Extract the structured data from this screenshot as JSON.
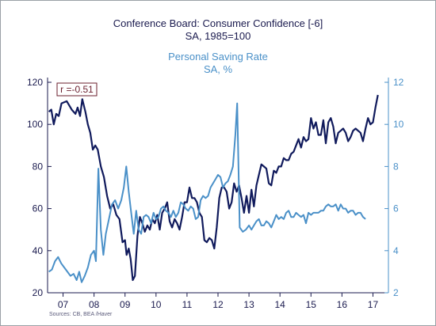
{
  "chart_data": {
    "type": "line",
    "title": "Conference Board: Consumer Confidence [-6]",
    "subtitle": "SA, 1985=100",
    "title2": "Personal Saving Rate",
    "subtitle2": "SA, %",
    "annotation": "r =-0.51",
    "source": "Sources:  CB, BEA /Haver",
    "grid": false,
    "x_ticks": [
      "07",
      "08",
      "09",
      "10",
      "11",
      "12",
      "13",
      "14",
      "15",
      "16",
      "17"
    ],
    "y_left_ticks": [
      "20",
      "40",
      "60",
      "80",
      "100",
      "120"
    ],
    "y_right_ticks": [
      "2",
      "4",
      "6",
      "8",
      "10",
      "12"
    ],
    "ylim_left": [
      20,
      120
    ],
    "ylim_right": [
      2,
      12
    ],
    "xlim": [
      2006.5,
      2017.5
    ],
    "colors": {
      "confidence": "#101a5c",
      "saving": "#4a90c8",
      "axis": "#1a1a4e"
    },
    "series": [
      {
        "axis": "left",
        "color": "#101a5c",
        "points": [
          [
            2006.54,
            106
          ],
          [
            2006.62,
            107
          ],
          [
            2006.7,
            100
          ],
          [
            2006.78,
            105
          ],
          [
            2006.86,
            104
          ],
          [
            2006.95,
            110
          ],
          [
            2007.12,
            111
          ],
          [
            2007.28,
            107
          ],
          [
            2007.4,
            105
          ],
          [
            2007.47,
            108
          ],
          [
            2007.55,
            104
          ],
          [
            2007.62,
            112
          ],
          [
            2007.72,
            106
          ],
          [
            2007.8,
            100
          ],
          [
            2007.88,
            96
          ],
          [
            2007.96,
            88
          ],
          [
            2008.04,
            90
          ],
          [
            2008.12,
            88
          ],
          [
            2008.22,
            80
          ],
          [
            2008.32,
            75
          ],
          [
            2008.42,
            66
          ],
          [
            2008.52,
            60
          ],
          [
            2008.62,
            62
          ],
          [
            2008.72,
            57
          ],
          [
            2008.82,
            55
          ],
          [
            2008.92,
            44
          ],
          [
            2009.0,
            45
          ],
          [
            2009.05,
            38
          ],
          [
            2009.12,
            41
          ],
          [
            2009.18,
            36
          ],
          [
            2009.25,
            26
          ],
          [
            2009.32,
            28
          ],
          [
            2009.4,
            47
          ],
          [
            2009.48,
            56
          ],
          [
            2009.56,
            53
          ],
          [
            2009.64,
            49
          ],
          [
            2009.72,
            52
          ],
          [
            2009.8,
            50
          ],
          [
            2009.88,
            55
          ],
          [
            2009.96,
            53
          ],
          [
            2010.04,
            57
          ],
          [
            2010.12,
            50
          ],
          [
            2010.2,
            58
          ],
          [
            2010.28,
            60
          ],
          [
            2010.36,
            63
          ],
          [
            2010.44,
            54
          ],
          [
            2010.52,
            51
          ],
          [
            2010.6,
            55
          ],
          [
            2010.68,
            53
          ],
          [
            2010.76,
            50
          ],
          [
            2010.84,
            56
          ],
          [
            2010.92,
            63
          ],
          [
            2011.0,
            63
          ],
          [
            2011.08,
            70
          ],
          [
            2011.16,
            65
          ],
          [
            2011.24,
            65
          ],
          [
            2011.32,
            63
          ],
          [
            2011.4,
            58
          ],
          [
            2011.48,
            56
          ],
          [
            2011.56,
            45
          ],
          [
            2011.64,
            44
          ],
          [
            2011.72,
            46
          ],
          [
            2011.8,
            45
          ],
          [
            2011.88,
            41
          ],
          [
            2011.96,
            51
          ],
          [
            2012.04,
            65
          ],
          [
            2012.12,
            70
          ],
          [
            2012.2,
            70
          ],
          [
            2012.28,
            68
          ],
          [
            2012.36,
            60
          ],
          [
            2012.44,
            63
          ],
          [
            2012.52,
            72
          ],
          [
            2012.6,
            68
          ],
          [
            2012.68,
            71
          ],
          [
            2012.76,
            65
          ],
          [
            2012.84,
            58
          ],
          [
            2012.92,
            66
          ],
          [
            2013.0,
            58
          ],
          [
            2013.08,
            69
          ],
          [
            2013.16,
            61
          ],
          [
            2013.24,
            71
          ],
          [
            2013.32,
            76
          ],
          [
            2013.4,
            81
          ],
          [
            2013.48,
            80
          ],
          [
            2013.56,
            79
          ],
          [
            2013.64,
            72
          ],
          [
            2013.72,
            71
          ],
          [
            2013.8,
            78
          ],
          [
            2013.88,
            77
          ],
          [
            2013.96,
            80
          ],
          [
            2014.04,
            80
          ],
          [
            2014.12,
            84
          ],
          [
            2014.2,
            83
          ],
          [
            2014.28,
            83
          ],
          [
            2014.36,
            86
          ],
          [
            2014.44,
            87
          ],
          [
            2014.52,
            90
          ],
          [
            2014.6,
            93
          ],
          [
            2014.68,
            89
          ],
          [
            2014.76,
            94
          ],
          [
            2014.84,
            92
          ],
          [
            2014.92,
            93
          ],
          [
            2015.0,
            103
          ],
          [
            2015.08,
            98
          ],
          [
            2015.16,
            101
          ],
          [
            2015.24,
            95
          ],
          [
            2015.32,
            95
          ],
          [
            2015.4,
            102
          ],
          [
            2015.48,
            91
          ],
          [
            2015.56,
            101
          ],
          [
            2015.64,
            103
          ],
          [
            2015.72,
            99
          ],
          [
            2015.8,
            91
          ],
          [
            2015.88,
            96
          ],
          [
            2015.96,
            97
          ],
          [
            2016.04,
            98
          ],
          [
            2016.12,
            96
          ],
          [
            2016.2,
            92
          ],
          [
            2016.28,
            94
          ],
          [
            2016.36,
            97
          ],
          [
            2016.44,
            98
          ],
          [
            2016.52,
            97
          ],
          [
            2016.6,
            96
          ],
          [
            2016.68,
            92
          ],
          [
            2016.76,
            98
          ],
          [
            2016.84,
            103
          ],
          [
            2016.92,
            100
          ],
          [
            2017.0,
            101
          ],
          [
            2017.08,
            108
          ],
          [
            2017.16,
            114
          ]
        ]
      },
      {
        "axis": "right",
        "color": "#4a90c8",
        "points": [
          [
            2006.54,
            3.0
          ],
          [
            2006.64,
            3.1
          ],
          [
            2006.74,
            3.5
          ],
          [
            2006.84,
            3.7
          ],
          [
            2006.94,
            3.4
          ],
          [
            2007.04,
            3.2
          ],
          [
            2007.14,
            3.0
          ],
          [
            2007.24,
            2.8
          ],
          [
            2007.34,
            2.9
          ],
          [
            2007.44,
            2.6
          ],
          [
            2007.52,
            3.0
          ],
          [
            2007.6,
            2.5
          ],
          [
            2007.7,
            2.8
          ],
          [
            2007.8,
            3.2
          ],
          [
            2007.9,
            3.8
          ],
          [
            2008.0,
            4.0
          ],
          [
            2008.06,
            3.5
          ],
          [
            2008.14,
            7.9
          ],
          [
            2008.22,
            5.0
          ],
          [
            2008.3,
            3.8
          ],
          [
            2008.38,
            4.8
          ],
          [
            2008.48,
            5.5
          ],
          [
            2008.58,
            6.2
          ],
          [
            2008.68,
            6.4
          ],
          [
            2008.78,
            6.0
          ],
          [
            2008.88,
            6.4
          ],
          [
            2008.96,
            7.0
          ],
          [
            2009.04,
            8.0
          ],
          [
            2009.12,
            6.8
          ],
          [
            2009.2,
            5.8
          ],
          [
            2009.28,
            4.8
          ],
          [
            2009.36,
            5.9
          ],
          [
            2009.44,
            5.0
          ],
          [
            2009.52,
            4.8
          ],
          [
            2009.6,
            5.6
          ],
          [
            2009.68,
            5.7
          ],
          [
            2009.76,
            5.6
          ],
          [
            2009.84,
            5.3
          ],
          [
            2009.92,
            5.8
          ],
          [
            2010.0,
            5.5
          ],
          [
            2010.08,
            5.6
          ],
          [
            2010.16,
            6.0
          ],
          [
            2010.24,
            6.1
          ],
          [
            2010.32,
            5.9
          ],
          [
            2010.4,
            5.8
          ],
          [
            2010.48,
            5.6
          ],
          [
            2010.56,
            5.9
          ],
          [
            2010.64,
            5.6
          ],
          [
            2010.72,
            5.8
          ],
          [
            2010.8,
            6.3
          ],
          [
            2010.88,
            6.2
          ],
          [
            2010.96,
            6.0
          ],
          [
            2011.04,
            5.9
          ],
          [
            2011.12,
            6.1
          ],
          [
            2011.2,
            6.0
          ],
          [
            2011.28,
            5.5
          ],
          [
            2011.36,
            5.6
          ],
          [
            2011.44,
            6.4
          ],
          [
            2011.52,
            6.6
          ],
          [
            2011.6,
            6.5
          ],
          [
            2011.68,
            6.6
          ],
          [
            2011.76,
            7.0
          ],
          [
            2011.84,
            7.2
          ],
          [
            2011.92,
            7.4
          ],
          [
            2012.0,
            7.6
          ],
          [
            2012.08,
            7.5
          ],
          [
            2012.16,
            7.0
          ],
          [
            2012.24,
            7.2
          ],
          [
            2012.32,
            7.3
          ],
          [
            2012.4,
            7.6
          ],
          [
            2012.48,
            8.0
          ],
          [
            2012.56,
            9.5
          ],
          [
            2012.62,
            11.0
          ],
          [
            2012.7,
            5.1
          ],
          [
            2012.8,
            4.9
          ],
          [
            2012.9,
            5.0
          ],
          [
            2013.0,
            5.2
          ],
          [
            2013.08,
            5.0
          ],
          [
            2013.16,
            5.2
          ],
          [
            2013.24,
            5.4
          ],
          [
            2013.32,
            5.5
          ],
          [
            2013.4,
            5.2
          ],
          [
            2013.48,
            5.2
          ],
          [
            2013.56,
            5.4
          ],
          [
            2013.64,
            5.3
          ],
          [
            2013.72,
            5.1
          ],
          [
            2013.8,
            5.4
          ],
          [
            2013.88,
            5.7
          ],
          [
            2013.96,
            5.5
          ],
          [
            2014.04,
            5.6
          ],
          [
            2014.12,
            5.5
          ],
          [
            2014.2,
            5.8
          ],
          [
            2014.28,
            5.9
          ],
          [
            2014.36,
            5.6
          ],
          [
            2014.44,
            5.6
          ],
          [
            2014.52,
            5.8
          ],
          [
            2014.6,
            5.7
          ],
          [
            2014.68,
            5.6
          ],
          [
            2014.76,
            5.7
          ],
          [
            2014.84,
            5.3
          ],
          [
            2014.92,
            5.8
          ],
          [
            2015.0,
            5.7
          ],
          [
            2015.08,
            5.8
          ],
          [
            2015.16,
            5.8
          ],
          [
            2015.24,
            5.8
          ],
          [
            2015.32,
            5.9
          ],
          [
            2015.4,
            5.9
          ],
          [
            2015.48,
            6.1
          ],
          [
            2015.56,
            6.2
          ],
          [
            2015.64,
            6.1
          ],
          [
            2015.72,
            6.1
          ],
          [
            2015.8,
            6.2
          ],
          [
            2015.88,
            5.9
          ],
          [
            2015.96,
            6.2
          ],
          [
            2016.04,
            6.0
          ],
          [
            2016.12,
            6.0
          ],
          [
            2016.2,
            5.8
          ],
          [
            2016.28,
            5.9
          ],
          [
            2016.36,
            5.9
          ],
          [
            2016.44,
            5.7
          ],
          [
            2016.52,
            5.8
          ],
          [
            2016.6,
            5.8
          ],
          [
            2016.68,
            5.6
          ],
          [
            2016.76,
            5.5
          ]
        ]
      }
    ]
  }
}
